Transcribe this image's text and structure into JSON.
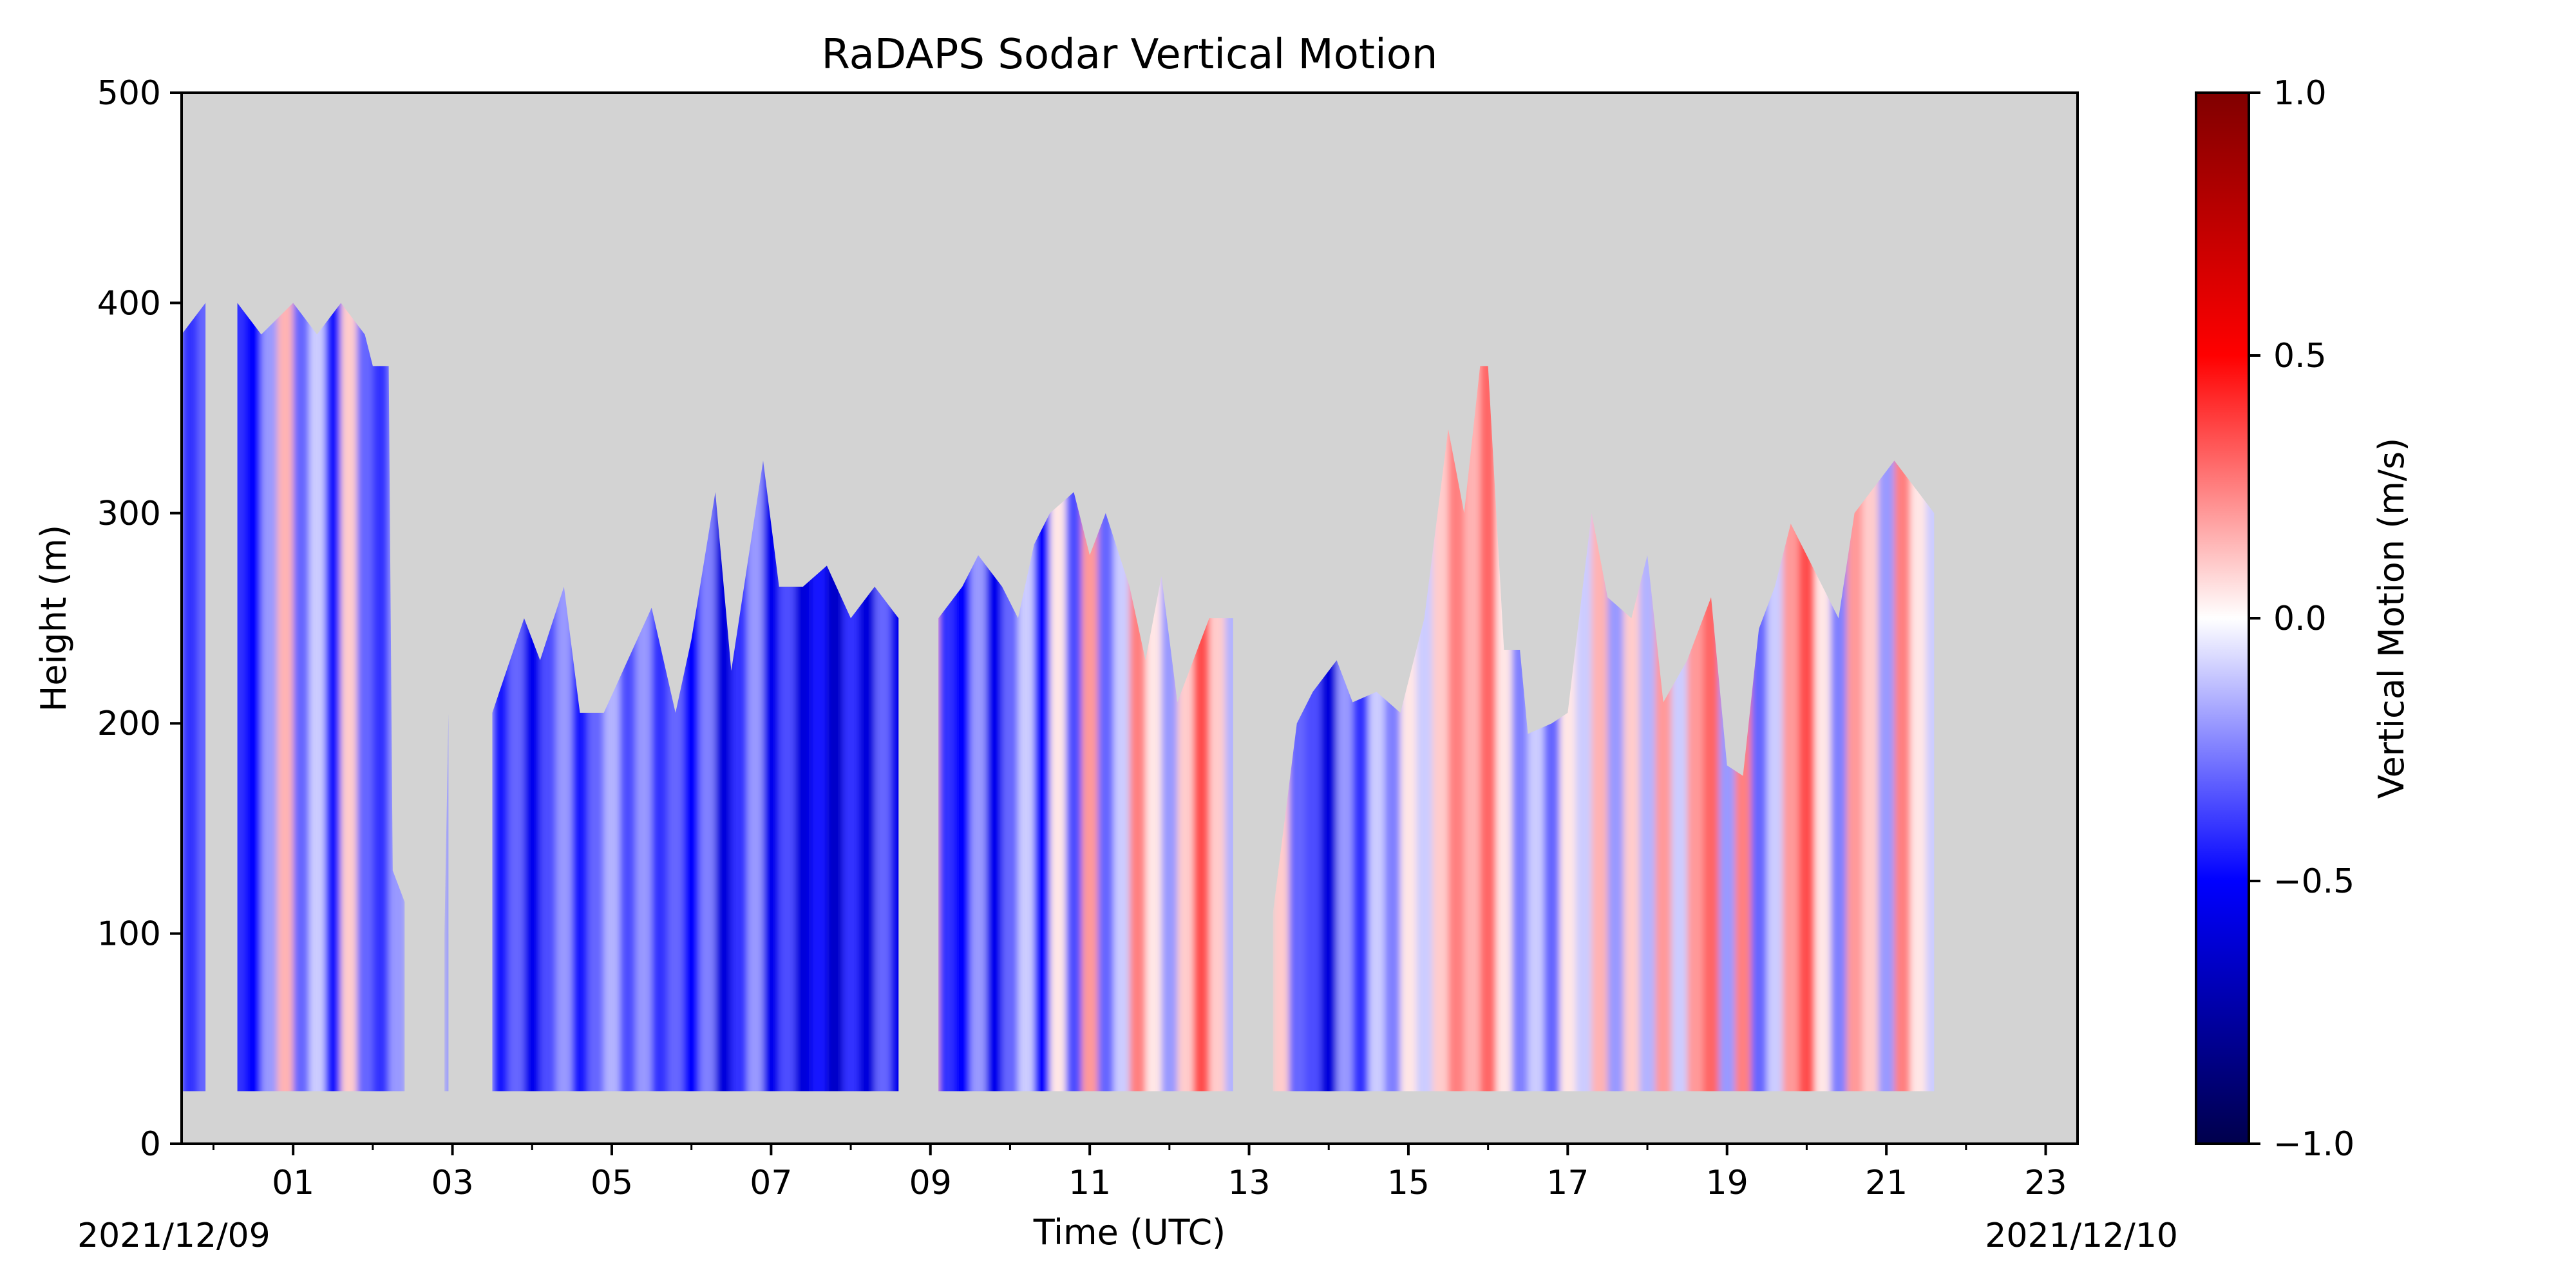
{
  "chart_data": {
    "type": "heatmap",
    "title": "RaDAPS Sodar Vertical Motion",
    "xlabel": "Time (UTC)",
    "ylabel": "Height (m)",
    "x_tick_labels": [
      "01",
      "03",
      "05",
      "07",
      "09",
      "11",
      "13",
      "15",
      "17",
      "19",
      "21",
      "23"
    ],
    "x_date_left": "2021/12/09",
    "x_date_right": "2021/12/10",
    "x_range_hours": [
      23.6,
      47.4
    ],
    "ylim": [
      0,
      500
    ],
    "y_ticks": [
      0,
      100,
      200,
      300,
      400,
      500
    ],
    "y_tick_labels": [
      "0",
      "100",
      "200",
      "300",
      "400",
      "500"
    ],
    "colorbar": {
      "label": "Vertical Motion (m/s)",
      "range": [
        -1.0,
        1.0
      ],
      "ticks": [
        -1.0,
        -0.5,
        0.0,
        0.5,
        1.0
      ],
      "tick_labels": [
        "−1.0",
        "−0.5",
        "0.0",
        "0.5",
        "1.0"
      ],
      "colormap": "seismic"
    },
    "background_color": "#d3d3d3",
    "min_height_m": 25,
    "max_height_profile_m": [
      [
        23.6,
        385
      ],
      [
        23.9,
        400
      ],
      [
        24.3,
        400
      ],
      [
        24.6,
        385
      ],
      [
        25.0,
        400
      ],
      [
        25.3,
        385
      ],
      [
        25.6,
        400
      ],
      [
        25.9,
        385
      ],
      [
        26.0,
        370
      ],
      [
        26.2,
        370
      ],
      [
        26.25,
        130
      ],
      [
        26.4,
        115
      ],
      [
        26.9,
        100
      ],
      [
        26.95,
        205
      ],
      [
        27.5,
        205
      ],
      [
        27.9,
        250
      ],
      [
        28.1,
        230
      ],
      [
        28.4,
        265
      ],
      [
        28.6,
        205
      ],
      [
        28.9,
        205
      ],
      [
        29.2,
        230
      ],
      [
        29.5,
        255
      ],
      [
        29.8,
        205
      ],
      [
        30.0,
        240
      ],
      [
        30.3,
        310
      ],
      [
        30.5,
        225
      ],
      [
        30.9,
        325
      ],
      [
        31.1,
        265
      ],
      [
        31.4,
        265
      ],
      [
        31.7,
        275
      ],
      [
        32.0,
        250
      ],
      [
        32.3,
        265
      ],
      [
        32.6,
        250
      ],
      [
        33.1,
        250
      ],
      [
        33.4,
        265
      ],
      [
        33.6,
        280
      ],
      [
        33.9,
        265
      ],
      [
        34.1,
        250
      ],
      [
        34.3,
        285
      ],
      [
        34.5,
        300
      ],
      [
        34.8,
        310
      ],
      [
        35.0,
        280
      ],
      [
        35.2,
        300
      ],
      [
        35.5,
        265
      ],
      [
        35.7,
        230
      ],
      [
        35.9,
        270
      ],
      [
        36.1,
        210
      ],
      [
        36.5,
        250
      ],
      [
        36.8,
        250
      ],
      [
        37.3,
        110
      ],
      [
        37.6,
        200
      ],
      [
        37.8,
        215
      ],
      [
        38.1,
        230
      ],
      [
        38.3,
        210
      ],
      [
        38.6,
        215
      ],
      [
        38.9,
        205
      ],
      [
        39.2,
        250
      ],
      [
        39.5,
        340
      ],
      [
        39.7,
        300
      ],
      [
        39.9,
        370
      ],
      [
        40.0,
        370
      ],
      [
        40.2,
        235
      ],
      [
        40.4,
        235
      ],
      [
        40.5,
        195
      ],
      [
        40.8,
        200
      ],
      [
        41.0,
        205
      ],
      [
        41.3,
        300
      ],
      [
        41.5,
        260
      ],
      [
        41.8,
        250
      ],
      [
        42.0,
        280
      ],
      [
        42.2,
        210
      ],
      [
        42.5,
        230
      ],
      [
        42.8,
        260
      ],
      [
        43.0,
        180
      ],
      [
        43.2,
        175
      ],
      [
        43.4,
        245
      ],
      [
        43.6,
        265
      ],
      [
        43.8,
        295
      ],
      [
        44.0,
        280
      ],
      [
        44.2,
        265
      ],
      [
        44.4,
        250
      ],
      [
        44.6,
        300
      ],
      [
        44.8,
        310
      ],
      [
        45.1,
        325
      ],
      [
        45.4,
        310
      ],
      [
        45.6,
        300
      ]
    ],
    "color_bands": [
      [
        23.6,
        -0.4
      ],
      [
        23.8,
        -0.3
      ],
      [
        24.0,
        0.1
      ],
      [
        24.2,
        -0.4
      ],
      [
        24.4,
        -0.5
      ],
      [
        24.6,
        -0.2
      ],
      [
        24.8,
        0.15
      ],
      [
        25.0,
        -0.3
      ],
      [
        25.2,
        -0.1
      ],
      [
        25.4,
        -0.45
      ],
      [
        25.6,
        0.1
      ],
      [
        25.8,
        -0.3
      ],
      [
        26.0,
        -0.4
      ],
      [
        26.2,
        -0.2
      ],
      [
        26.9,
        -0.2
      ],
      [
        27.1,
        -0.3
      ],
      [
        27.3,
        -0.15
      ],
      [
        27.5,
        -0.45
      ],
      [
        27.7,
        -0.3
      ],
      [
        27.9,
        -0.55
      ],
      [
        28.1,
        -0.35
      ],
      [
        28.3,
        -0.2
      ],
      [
        28.5,
        -0.45
      ],
      [
        28.7,
        -0.3
      ],
      [
        28.9,
        -0.15
      ],
      [
        29.1,
        -0.35
      ],
      [
        29.3,
        -0.2
      ],
      [
        29.5,
        -0.4
      ],
      [
        29.7,
        -0.3
      ],
      [
        29.9,
        -0.5
      ],
      [
        30.1,
        -0.25
      ],
      [
        30.3,
        -0.6
      ],
      [
        30.5,
        -0.4
      ],
      [
        30.7,
        -0.2
      ],
      [
        30.9,
        -0.55
      ],
      [
        31.1,
        -0.35
      ],
      [
        31.3,
        -0.6
      ],
      [
        31.5,
        -0.45
      ],
      [
        31.7,
        -0.65
      ],
      [
        31.9,
        -0.4
      ],
      [
        32.1,
        -0.6
      ],
      [
        32.3,
        -0.3
      ],
      [
        32.5,
        -0.55
      ],
      [
        32.7,
        -0.65
      ],
      [
        32.9,
        0.15
      ],
      [
        33.1,
        -0.4
      ],
      [
        33.3,
        -0.5
      ],
      [
        33.5,
        -0.2
      ],
      [
        33.7,
        -0.55
      ],
      [
        33.9,
        -0.3
      ],
      [
        34.1,
        -0.1
      ],
      [
        34.3,
        -0.5
      ],
      [
        34.5,
        0.05
      ],
      [
        34.7,
        -0.35
      ],
      [
        34.9,
        0.2
      ],
      [
        35.1,
        -0.3
      ],
      [
        35.3,
        -0.1
      ],
      [
        35.5,
        0.25
      ],
      [
        35.7,
        0.05
      ],
      [
        35.9,
        -0.2
      ],
      [
        36.1,
        0.1
      ],
      [
        36.3,
        0.35
      ],
      [
        36.5,
        0.1
      ],
      [
        36.7,
        -0.15
      ],
      [
        37.3,
        0.1
      ],
      [
        37.5,
        -0.3
      ],
      [
        37.7,
        -0.35
      ],
      [
        37.9,
        -0.6
      ],
      [
        38.1,
        -0.2
      ],
      [
        38.3,
        -0.4
      ],
      [
        38.5,
        -0.1
      ],
      [
        38.7,
        -0.25
      ],
      [
        38.9,
        0.05
      ],
      [
        39.1,
        -0.1
      ],
      [
        39.3,
        0.1
      ],
      [
        39.5,
        0.25
      ],
      [
        39.7,
        0.15
      ],
      [
        39.9,
        0.3
      ],
      [
        40.1,
        0.05
      ],
      [
        40.3,
        -0.25
      ],
      [
        40.5,
        -0.1
      ],
      [
        40.7,
        -0.3
      ],
      [
        40.9,
        0.05
      ],
      [
        41.1,
        -0.1
      ],
      [
        41.3,
        0.15
      ],
      [
        41.5,
        -0.2
      ],
      [
        41.7,
        0.1
      ],
      [
        41.9,
        -0.15
      ],
      [
        42.1,
        0.2
      ],
      [
        42.3,
        -0.1
      ],
      [
        42.5,
        0.2
      ],
      [
        42.7,
        0.3
      ],
      [
        42.9,
        -0.2
      ],
      [
        43.1,
        0.25
      ],
      [
        43.3,
        -0.3
      ],
      [
        43.5,
        -0.1
      ],
      [
        43.7,
        0.2
      ],
      [
        43.9,
        0.35
      ],
      [
        44.1,
        0.05
      ],
      [
        44.3,
        -0.25
      ],
      [
        44.5,
        0.2
      ],
      [
        44.7,
        0.1
      ],
      [
        44.9,
        -0.2
      ],
      [
        45.1,
        0.25
      ],
      [
        45.3,
        0.05
      ],
      [
        45.5,
        -0.1
      ],
      [
        45.7,
        0.1
      ],
      [
        45.9,
        -0.2
      ],
      [
        46.1,
        0.15
      ],
      [
        46.3,
        -0.4
      ],
      [
        46.5,
        -0.2
      ],
      [
        46.7,
        0.15
      ],
      [
        46.9,
        -0.3
      ],
      [
        47.1,
        0.2
      ],
      [
        47.3,
        -0.1
      ]
    ]
  }
}
